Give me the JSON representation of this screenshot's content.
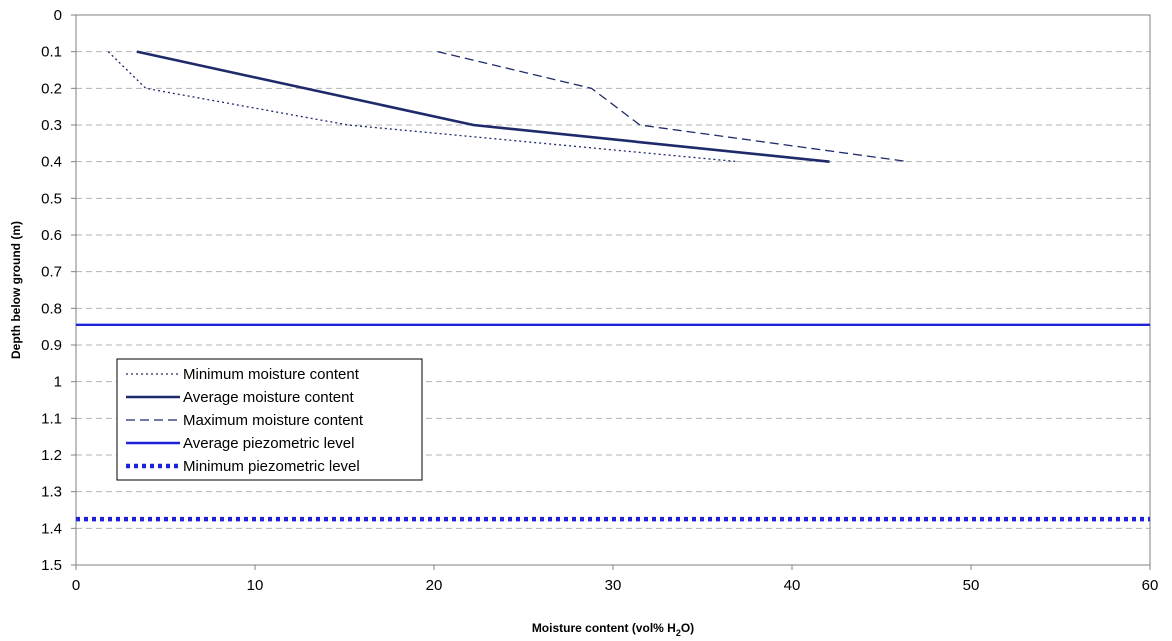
{
  "chart_data": {
    "type": "line",
    "xlabel": "Moisture content (vol% H2O)",
    "ylabel": "Depth below ground (m)",
    "xlim": [
      0,
      60
    ],
    "ylim": [
      0,
      1.5
    ],
    "y_inverted": true,
    "x_ticks": [
      "0",
      "10",
      "20",
      "30",
      "40",
      "50",
      "60"
    ],
    "y_ticks": [
      "0",
      "0.1",
      "0.2",
      "0.3",
      "0.4",
      "0.5",
      "0.6",
      "0.7",
      "0.8",
      "0.9",
      "1",
      "1.1",
      "1.2",
      "1.3",
      "1.4",
      "1.5"
    ],
    "grid": "horizontal dashed",
    "legend_position": "lower-left",
    "series": [
      {
        "name": "Minimum moisture content",
        "style": "dotted",
        "color": "#1f2a6b",
        "points": [
          [
            1.8,
            0.1
          ],
          [
            3.9,
            0.2
          ],
          [
            15.2,
            0.3
          ],
          [
            37.0,
            0.4
          ]
        ]
      },
      {
        "name": "Average moisture content",
        "style": "solid-thick",
        "color": "#1f2a6b",
        "points": [
          [
            3.4,
            0.1
          ],
          [
            22.2,
            0.3
          ],
          [
            42.1,
            0.4
          ]
        ]
      },
      {
        "name": "Maximum moisture content",
        "style": "dashed",
        "color": "#1f2a6b",
        "points": [
          [
            20.2,
            0.1
          ],
          [
            28.8,
            0.2
          ],
          [
            31.5,
            0.3
          ],
          [
            46.5,
            0.4
          ]
        ]
      },
      {
        "name": "Average piezometric level",
        "style": "solid-blue",
        "color": "#1e22d9",
        "y": 0.845
      },
      {
        "name": "Minimum piezometric level",
        "style": "dotted-blue-thick",
        "color": "#1e22d9",
        "y": 1.375
      }
    ]
  }
}
